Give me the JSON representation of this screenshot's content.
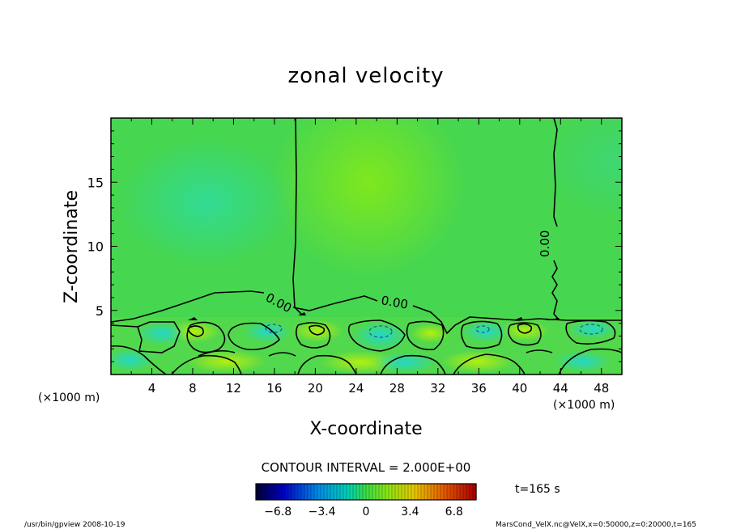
{
  "chart_data": {
    "type": "heatmap",
    "title": "zonal velocity",
    "xlabel": "X-coordinate",
    "ylabel": "Z-coordinate",
    "x_unit_left": "(×1000 m)",
    "x_unit_right": "(×1000 m)",
    "xlim": [
      0,
      50
    ],
    "ylim": [
      0,
      20
    ],
    "x_ticks": [
      "4",
      "8",
      "12",
      "16",
      "20",
      "24",
      "28",
      "32",
      "36",
      "40",
      "44",
      "48"
    ],
    "y_ticks": [
      "5",
      "10",
      "15"
    ],
    "contour_labels": [
      "0.00",
      "0.00",
      "0.00"
    ],
    "contour_interval_text": "CONTOUR INTERVAL = 2.000E+00",
    "time_text": "t=165 s",
    "colorbar": {
      "min": -8.5,
      "max": 8.5,
      "tick_labels": [
        "−6.8",
        "−3.4",
        "0",
        "3.4",
        "6.8"
      ],
      "tick_values": [
        -6.8,
        -3.4,
        0,
        3.4,
        6.8
      ]
    },
    "footer_left": "/usr/bin/gpview   2008-10-19",
    "footer_right": "MarsCond_VelX.nc@VelX,x=0:50000,z=0:20000,t=165",
    "colors": {
      "background_field": "#44d652",
      "positive": "#78e81c",
      "negative": "#2ed8a4"
    }
  }
}
